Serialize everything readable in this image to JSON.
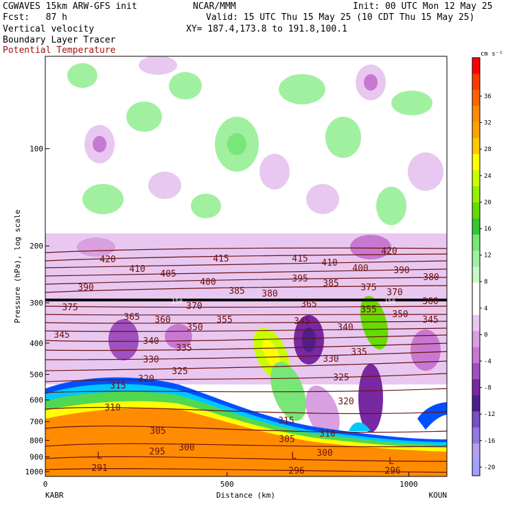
{
  "header": {
    "model": "CGWAVES 15km ARW-GFS init",
    "org": "NCAR/MMM",
    "init": "Init: 00 UTC Mon 12 May 25",
    "fcst": "Fcst:   87 h",
    "valid": "Valid: 15 UTC Thu 15 May 25 (10 CDT Thu 15 May 25)",
    "field1": "Vertical velocity",
    "xy": "XY= 187.4,173.8 to 191.8,100.1",
    "field2": "Boundary Layer Tracer",
    "field3": "Potential Temperature"
  },
  "chart_data": {
    "type": "heatmap",
    "xlabel": "Distance (km)",
    "ylabel": "Pressure (hPa), log scale",
    "x_ticks": [
      0,
      500,
      1000
    ],
    "x_endpoints": [
      "KABR",
      "KOUN"
    ],
    "y_ticks": [
      100,
      200,
      300,
      400,
      500,
      600,
      700,
      800,
      900,
      1000
    ],
    "colorbar": {
      "unit": "cm s⁻¹",
      "labels": [
        "36",
        "32",
        "28",
        "24",
        "20",
        "16",
        "12",
        "8",
        "4",
        "0",
        "-4",
        "-8",
        "-12",
        "-16",
        "-20"
      ],
      "colors": [
        "#ff0000",
        "#ff3c00",
        "#ff6400",
        "#ff8c00",
        "#ffa000",
        "#ffc800",
        "#ffff00",
        "#c8ff00",
        "#96f000",
        "#64dc00",
        "#32c832",
        "#78e678",
        "#a0f0a0",
        "#c8f8c8",
        "#ffffff",
        "#ffffff",
        "#e8c8f0",
        "#d8a0e0",
        "#c878d0",
        "#a050c0",
        "#7828a0",
        "#501e8c",
        "#7850c8",
        "#9678e0",
        "#b4a0f0",
        "#a0a0ff"
      ]
    },
    "theta_labels": [
      {
        "t": "420",
        "x": 157,
        "y": 382
      },
      {
        "t": "415",
        "x": 322,
        "y": 381
      },
      {
        "t": "415",
        "x": 437,
        "y": 381
      },
      {
        "t": "420",
        "x": 567,
        "y": 370
      },
      {
        "t": "410",
        "x": 200,
        "y": 396
      },
      {
        "t": "405",
        "x": 245,
        "y": 403
      },
      {
        "t": "410",
        "x": 480,
        "y": 387
      },
      {
        "t": "400",
        "x": 525,
        "y": 395
      },
      {
        "t": "390",
        "x": 585,
        "y": 398
      },
      {
        "t": "390",
        "x": 125,
        "y": 423
      },
      {
        "t": "400",
        "x": 303,
        "y": 415
      },
      {
        "t": "395",
        "x": 437,
        "y": 410
      },
      {
        "t": "385",
        "x": 482,
        "y": 417
      },
      {
        "t": "380",
        "x": 628,
        "y": 408
      },
      {
        "t": "385",
        "x": 345,
        "y": 428
      },
      {
        "t": "380",
        "x": 393,
        "y": 432
      },
      {
        "t": "375",
        "x": 537,
        "y": 423
      },
      {
        "t": "370",
        "x": 575,
        "y": 430
      },
      {
        "t": "375",
        "x": 102,
        "y": 452
      },
      {
        "t": "370",
        "x": 283,
        "y": 450
      },
      {
        "t": "365",
        "x": 450,
        "y": 447
      },
      {
        "t": "355",
        "x": 537,
        "y": 455
      },
      {
        "t": "350",
        "x": 583,
        "y": 462
      },
      {
        "t": "360",
        "x": 627,
        "y": 443
      },
      {
        "t": "365",
        "x": 192,
        "y": 466
      },
      {
        "t": "360",
        "x": 237,
        "y": 470
      },
      {
        "t": "355",
        "x": 327,
        "y": 470
      },
      {
        "t": "345",
        "x": 440,
        "y": 472
      },
      {
        "t": "345",
        "x": 627,
        "y": 470
      },
      {
        "t": "350",
        "x": 284,
        "y": 481
      },
      {
        "t": "340",
        "x": 503,
        "y": 481
      },
      {
        "t": "345",
        "x": 90,
        "y": 492
      },
      {
        "t": "340",
        "x": 220,
        "y": 501
      },
      {
        "t": "335",
        "x": 268,
        "y": 511
      },
      {
        "t": "335",
        "x": 523,
        "y": 517
      },
      {
        "t": "330",
        "x": 220,
        "y": 528
      },
      {
        "t": "330",
        "x": 482,
        "y": 527
      },
      {
        "t": "325",
        "x": 262,
        "y": 545
      },
      {
        "t": "325",
        "x": 497,
        "y": 554
      },
      {
        "t": "320",
        "x": 213,
        "y": 556
      },
      {
        "t": "315",
        "x": 172,
        "y": 566
      },
      {
        "t": "320",
        "x": 504,
        "y": 589
      },
      {
        "t": "310",
        "x": 164,
        "y": 598
      },
      {
        "t": "315",
        "x": 417,
        "y": 617
      },
      {
        "t": "310",
        "x": 477,
        "y": 636
      },
      {
        "t": "305",
        "x": 230,
        "y": 632
      },
      {
        "t": "305",
        "x": 418,
        "y": 644
      },
      {
        "t": "295",
        "x": 229,
        "y": 662
      },
      {
        "t": "300",
        "x": 272,
        "y": 656
      },
      {
        "t": "300",
        "x": 473,
        "y": 664
      },
      {
        "t": "291",
        "x": 145,
        "y": 686
      },
      {
        "t": "296",
        "x": 432,
        "y": 690
      },
      {
        "t": "296",
        "x": 572,
        "y": 690
      },
      {
        "t": "L",
        "x": 145,
        "y": 668
      },
      {
        "t": "L",
        "x": 428,
        "y": 668
      },
      {
        "t": "L",
        "x": 570,
        "y": 676
      }
    ],
    "tropopause_labels": [
      {
        "t": "150",
        "x": 258,
        "y": 439
      },
      {
        "t": "150",
        "x": 568,
        "y": 439
      }
    ]
  }
}
